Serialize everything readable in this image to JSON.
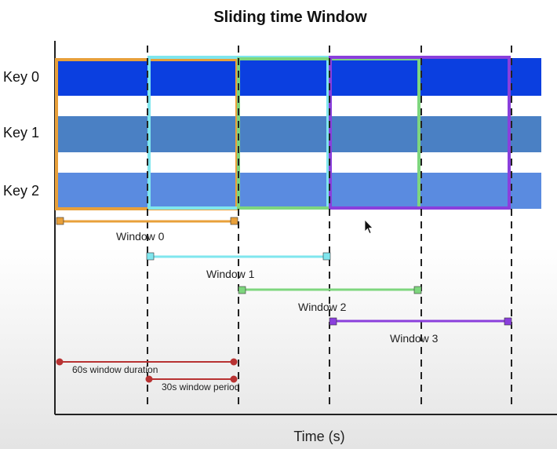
{
  "title": "Sliding time Window",
  "x_axis_label": "Time (s)",
  "keys": [
    {
      "label": "Key 0",
      "color": "#0b3fe0"
    },
    {
      "label": "Key 1",
      "color": "#4a80c4"
    },
    {
      "label": "Key 2",
      "color": "#5a8be0"
    }
  ],
  "windows": [
    {
      "label": "Window 0",
      "color": "#e8a03a",
      "start_s": 0,
      "end_s": 60
    },
    {
      "label": "Window 1",
      "color": "#7fe6ee",
      "start_s": 30,
      "end_s": 90
    },
    {
      "label": "Window 2",
      "color": "#7ed67e",
      "start_s": 60,
      "end_s": 120
    },
    {
      "label": "Window 3",
      "color": "#8a3fdc",
      "start_s": 90,
      "end_s": 150
    }
  ],
  "annotations": {
    "duration_label": "60s window duration",
    "period_label": "30s window period",
    "duration_s": 60,
    "period_s": 30,
    "color": "#b83232"
  }
}
